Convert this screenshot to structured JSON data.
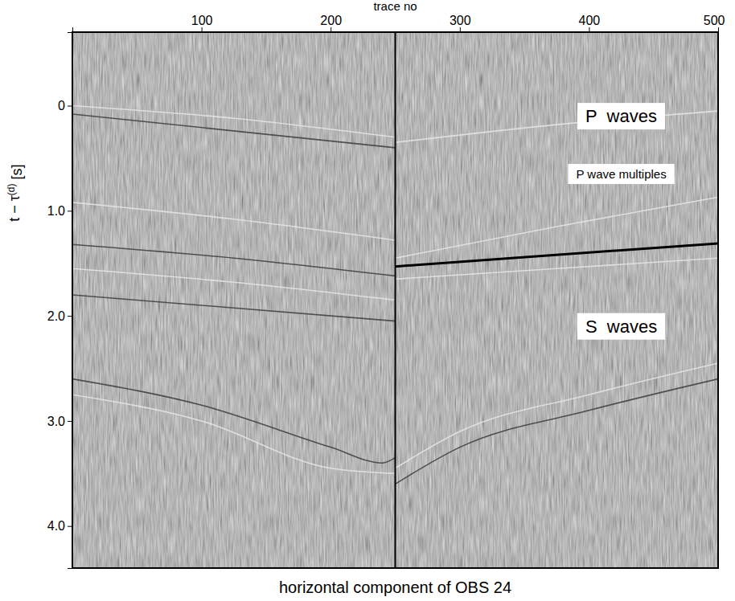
{
  "chart_data": {
    "type": "line",
    "title": "horizontal component of OBS 24",
    "x_label": "trace no",
    "y_label": "t − τ(d) [s]",
    "xlim": [
      0,
      500
    ],
    "xticks": [
      100,
      200,
      300,
      400,
      500
    ],
    "ylim": [
      -0.7,
      4.4
    ],
    "yticks": [
      0,
      {
        "value": 1,
        "label": "1.0"
      },
      {
        "value": 2,
        "label": "2.0"
      },
      {
        "value": 3,
        "label": "3.0"
      },
      {
        "value": 4,
        "label": "4.0"
      }
    ],
    "divider_x": 250,
    "series": [
      {
        "color": "#e6e6e6",
        "x": [
          0,
          125,
          250
        ],
        "values": [
          0.0,
          0.12,
          0.3
        ]
      },
      {
        "color": "#3c3c3c",
        "x": [
          0,
          250
        ],
        "values": [
          0.08,
          0.4
        ]
      },
      {
        "color": "#e6e6e6",
        "x": [
          250,
          375,
          500
        ],
        "values": [
          0.35,
          0.18,
          0.05
        ]
      },
      {
        "color": "#e6e6e6",
        "x": [
          0,
          125,
          250
        ],
        "values": [
          0.92,
          1.08,
          1.28
        ]
      },
      {
        "color": "#e6e6e6",
        "x": [
          250,
          375,
          500
        ],
        "values": [
          1.45,
          1.15,
          0.87
        ]
      },
      {
        "color": "#3c3c3c",
        "x": [
          0,
          125,
          250
        ],
        "values": [
          1.32,
          1.45,
          1.62
        ]
      },
      {
        "color": "#e6e6e6",
        "x": [
          0,
          125,
          250
        ],
        "values": [
          1.55,
          1.68,
          1.85
        ]
      },
      {
        "color": "#3c3c3c",
        "x": [
          0,
          250
        ],
        "values": [
          1.8,
          2.05
        ]
      },
      {
        "color": "#e6e6e6",
        "x": [
          250,
          375,
          500
        ],
        "values": [
          1.65,
          1.55,
          1.45
        ]
      },
      {
        "color": "#3c3c3c",
        "x": [
          0,
          100,
          200,
          240,
          250
        ],
        "values": [
          2.6,
          2.85,
          3.25,
          3.4,
          3.35
        ]
      },
      {
        "color": "#e6e6e6",
        "x": [
          0,
          100,
          200,
          250
        ],
        "values": [
          2.75,
          3.0,
          3.45,
          3.5
        ]
      },
      {
        "color": "#e6e6e6",
        "x": [
          250,
          300,
          400,
          500
        ],
        "values": [
          3.45,
          3.1,
          2.75,
          2.45
        ]
      },
      {
        "color": "#3c3c3c",
        "x": [
          250,
          300,
          400,
          500
        ],
        "values": [
          3.6,
          3.25,
          2.9,
          2.6
        ]
      },
      {
        "color": "#000000",
        "x": [
          250,
          500
        ],
        "values": [
          1.53,
          1.31
        ]
      }
    ],
    "annotations": [
      {
        "text": "P  waves",
        "x": 425,
        "y": 0.1
      },
      {
        "text": "P wave multiples",
        "x": 425,
        "y": 0.65
      },
      {
        "text": "S  waves",
        "x": 425,
        "y": 2.1
      }
    ]
  }
}
